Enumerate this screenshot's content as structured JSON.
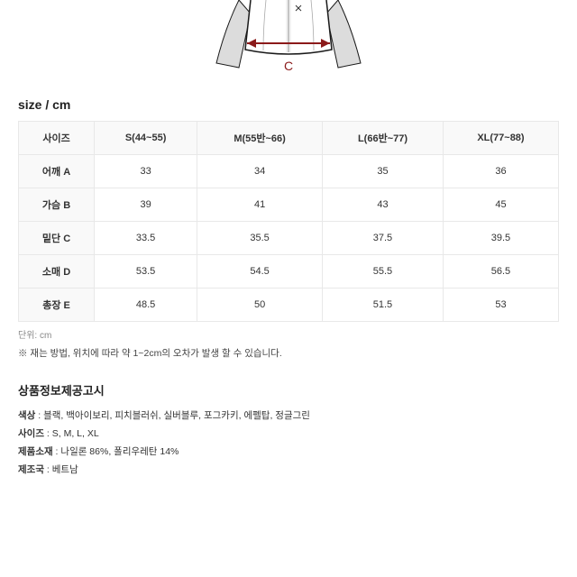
{
  "diagram": {
    "label_c": "C",
    "arrow_color": "#8b1a1a",
    "outline_color": "#1a1a1a",
    "shading_color": "#dcdcdc",
    "bg": "#ffffff"
  },
  "size_section": {
    "heading": "size / cm",
    "columns": [
      "사이즈",
      "S(44~55)",
      "M(55반~66)",
      "L(66반~77)",
      "XL(77~88)"
    ],
    "rows": [
      {
        "head": "어깨 A",
        "cells": [
          "33",
          "34",
          "35",
          "36"
        ]
      },
      {
        "head": "가슴 B",
        "cells": [
          "39",
          "41",
          "43",
          "45"
        ]
      },
      {
        "head": "밑단 C",
        "cells": [
          "33.5",
          "35.5",
          "37.5",
          "39.5"
        ]
      },
      {
        "head": "소매 D",
        "cells": [
          "53.5",
          "54.5",
          "55.5",
          "56.5"
        ]
      },
      {
        "head": "총장 E",
        "cells": [
          "48.5",
          "50",
          "51.5",
          "53"
        ]
      }
    ],
    "unit_note": "단위: cm",
    "tolerance_note": "※ 재는 방법, 위치에 따라 약 1~2cm의 오차가 발생 할 수 있습니다."
  },
  "info_section": {
    "heading": "상품정보제공고시",
    "items": [
      {
        "label": "색상",
        "value": "블랙, 백아이보리, 피치블러쉬, 실버블루, 포그카키, 에펠탑, 정글그린"
      },
      {
        "label": "사이즈",
        "value": "S, M, L, XL"
      },
      {
        "label": "제품소재",
        "value": "나일론 86%, 폴리우레탄 14%"
      },
      {
        "label": "제조국",
        "value": "베트남"
      }
    ]
  },
  "table_style": {
    "border_color": "#e8e8e8",
    "header_bg": "#f9f9f9",
    "font_size": 11
  }
}
